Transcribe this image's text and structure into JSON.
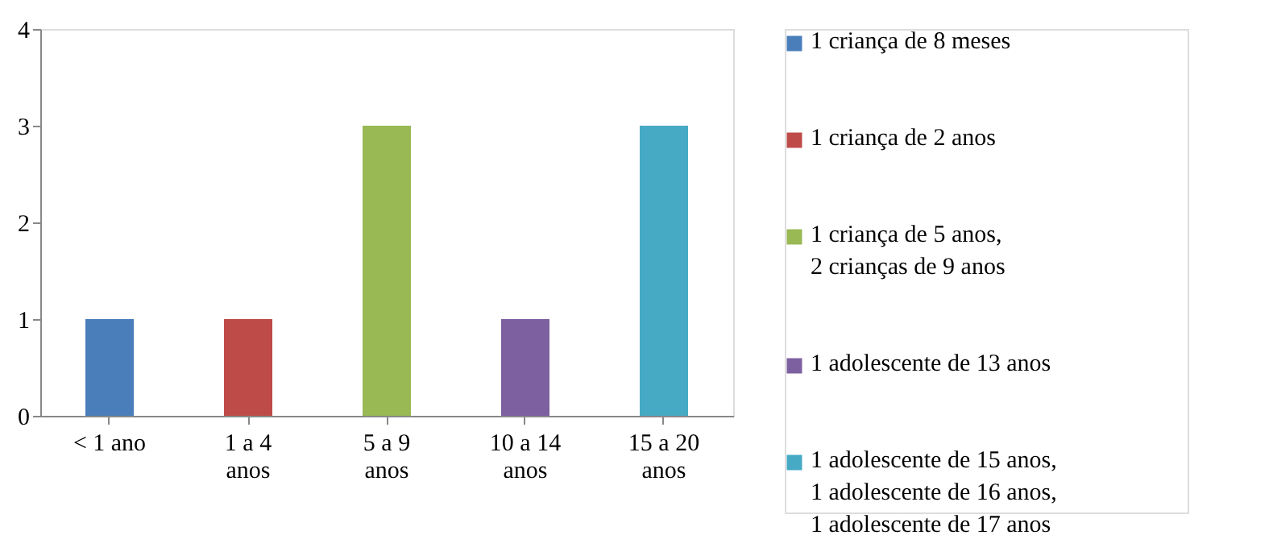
{
  "chart_data": {
    "type": "bar",
    "categories": [
      "< 1 ano",
      "1 a 4 anos",
      "5 a 9 anos",
      "10 a 14 anos",
      "15 a 20 anos"
    ],
    "series": [
      {
        "name": "1 criança de 8 meses",
        "color": "#4a7ebb",
        "values": [
          1,
          null,
          null,
          null,
          null
        ]
      },
      {
        "name": "1 criança de 2 anos",
        "color": "#be4b48",
        "values": [
          null,
          1,
          null,
          null,
          null
        ]
      },
      {
        "name": "1 criança de 5 anos, 2 crianças de 9 anos",
        "color": "#98b954",
        "values": [
          null,
          null,
          3,
          null,
          null
        ]
      },
      {
        "name": "1 adolescente de 13 anos",
        "color": "#7d60a0",
        "values": [
          null,
          null,
          null,
          1,
          null
        ]
      },
      {
        "name": "1 adolescente de 15 anos, 1 adolescente de 16 anos, 1 adolescente de 17 anos",
        "color": "#46aac5",
        "values": [
          null,
          null,
          null,
          null,
          3
        ]
      }
    ],
    "ylim": [
      0,
      4
    ],
    "yticks": [
      0,
      1,
      2,
      3,
      4
    ],
    "grid": false,
    "legend": "right"
  }
}
